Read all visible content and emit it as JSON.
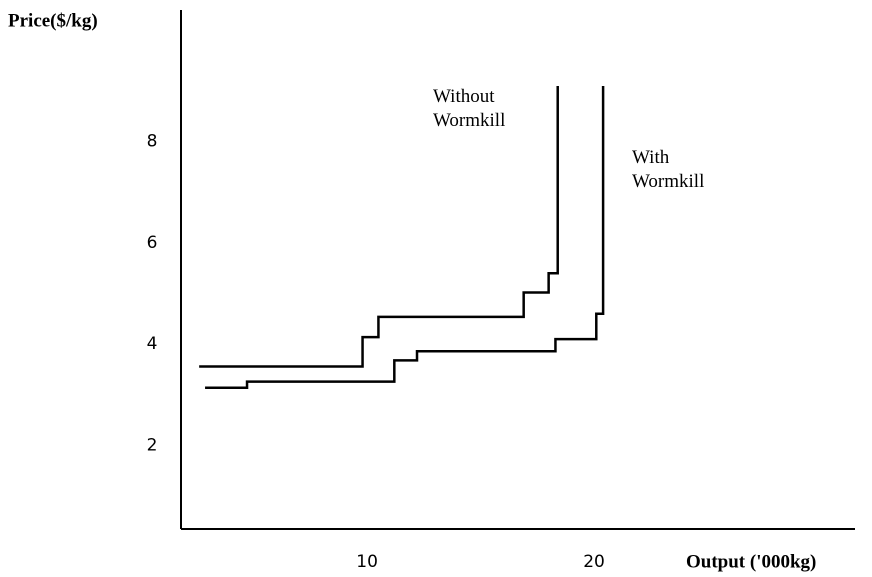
{
  "chart_data": {
    "type": "line",
    "y_axis_label": "Price($/kg)",
    "x_axis_label": "Output ('000kg)",
    "xlim": [
      1.8,
      31.5
    ],
    "xticks": [
      10,
      20
    ],
    "ylim": [
      0.35,
      10.6
    ],
    "yticks": [
      2,
      4,
      6,
      8
    ],
    "grid": false,
    "series": [
      {
        "name": "Without Wormkill",
        "color": "#000000",
        "x": [
          2.6,
          9.8,
          9.8,
          10.5,
          10.5,
          16.9,
          16.9,
          18.0,
          18.0,
          18.4,
          18.4
        ],
        "values": [
          3.56,
          3.56,
          4.14,
          4.14,
          4.54,
          4.54,
          5.02,
          5.02,
          5.4,
          5.4,
          9.1
        ]
      },
      {
        "name": "With Wormkill",
        "color": "#000000",
        "x": [
          2.86,
          4.71,
          4.71,
          11.2,
          11.2,
          12.2,
          12.2,
          18.3,
          18.3,
          20.1,
          20.1,
          20.4,
          20.4
        ],
        "values": [
          3.14,
          3.14,
          3.26,
          3.26,
          3.68,
          3.68,
          3.86,
          3.86,
          4.1,
          4.1,
          4.6,
          4.6,
          9.1
        ]
      }
    ]
  }
}
